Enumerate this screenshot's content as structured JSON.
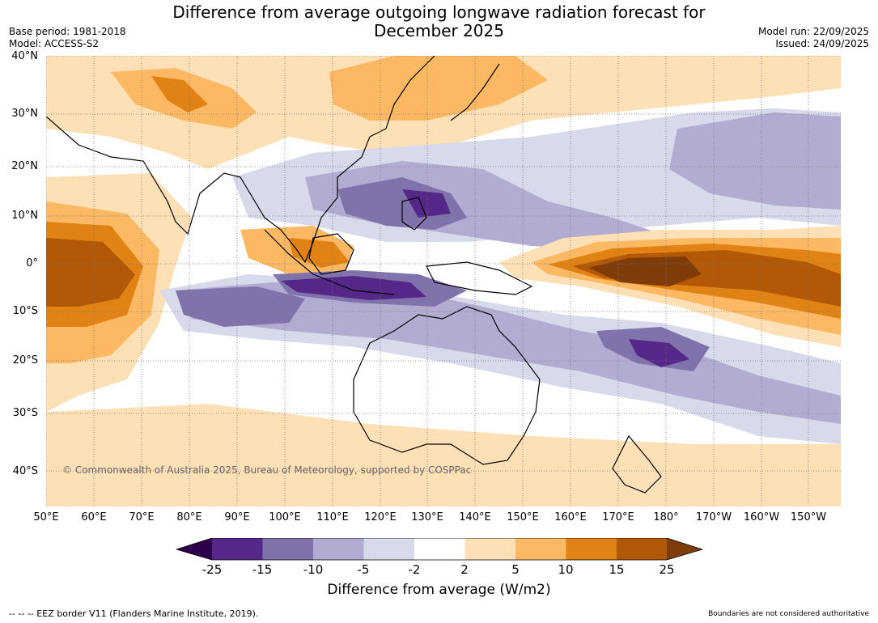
{
  "title_line1": "Difference from average outgoing longwave radiation forecast for",
  "title_line2": "December 2025",
  "base_period": "Base period: 1981-2018",
  "model": "Model: ACCESS-S2",
  "model_run": "Model run: 22/09/2025",
  "issued": "Issued: 24/09/2025",
  "lat_labels": [
    "40°N",
    "30°N",
    "20°N",
    "10°N",
    "0°",
    "10°S",
    "20°S",
    "30°S",
    "40°S"
  ],
  "lon_labels": [
    "50°E",
    "60°E",
    "70°E",
    "80°E",
    "90°E",
    "100°E",
    "110°E",
    "120°E",
    "130°E",
    "140°E",
    "150°E",
    "160°E",
    "170°E",
    "180°",
    "170°W",
    "160°W",
    "150°W"
  ],
  "copyright": "© Commonwealth of Australia 2025, Bureau of Meteorology, supported by COSPPac",
  "colorbar": {
    "ticks": [
      "-25",
      "-15",
      "-10",
      "-5",
      "-2",
      "2",
      "5",
      "10",
      "15",
      "25"
    ],
    "colors": [
      "#2d004b",
      "#542788",
      "#8073ac",
      "#b2abd2",
      "#d8daeb",
      "#ffffff",
      "#fee0b6",
      "#fdb863",
      "#e08214",
      "#b35806",
      "#7f3b08"
    ],
    "title": "Difference from average (W/m2)"
  },
  "eez_note": "--  --  -- EEZ border V11 (Flanders Marine Institute, 2019).",
  "boundaries_note": "Boundaries are not considered authoritative"
}
